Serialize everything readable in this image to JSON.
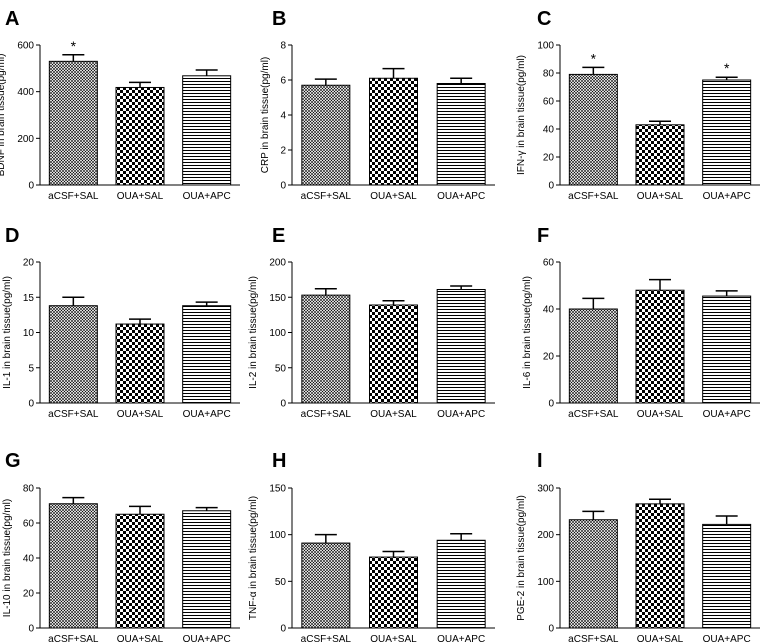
{
  "figure": {
    "categories": [
      "aCSF+SAL",
      "OUA+SAL",
      "OUA+APC"
    ],
    "patterns": [
      "hatch-fine",
      "checker",
      "hstripes"
    ],
    "colors": {
      "ink": "#000000",
      "background": "#ffffff"
    }
  },
  "chart_data": [
    {
      "type": "bar",
      "panel_label": "A",
      "ylabel": "BDNF in brain tissue(pg/ml)",
      "categories": [
        "aCSF+SAL",
        "OUA+SAL",
        "OUA+APC"
      ],
      "values": [
        530,
        418,
        468
      ],
      "errors": [
        28,
        22,
        25
      ],
      "significance": [
        "*",
        "",
        ""
      ],
      "ylim": [
        0,
        600
      ],
      "yticks": [
        0,
        200,
        400,
        600
      ],
      "yticks_labels": [
        "0",
        "200",
        "400",
        "600"
      ]
    },
    {
      "type": "bar",
      "panel_label": "B",
      "ylabel": "CRP in brain tissue(pg/ml)",
      "categories": [
        "aCSF+SAL",
        "OUA+SAL",
        "OUA+APC"
      ],
      "values": [
        5.7,
        6.1,
        5.8
      ],
      "errors": [
        0.35,
        0.55,
        0.3
      ],
      "significance": [
        "",
        "",
        ""
      ],
      "ylim": [
        0,
        8
      ],
      "yticks": [
        0,
        2,
        4,
        6,
        8
      ],
      "yticks_labels": [
        "0",
        "2",
        "4",
        "6",
        "8"
      ]
    },
    {
      "type": "bar",
      "panel_label": "C",
      "ylabel": "IFN-γ in brain tissue(pg/ml)",
      "categories": [
        "aCSF+SAL",
        "OUA+SAL",
        "OUA+APC"
      ],
      "values": [
        79,
        43,
        75
      ],
      "errors": [
        5,
        2.5,
        2
      ],
      "significance": [
        "*",
        "",
        "*"
      ],
      "ylim": [
        0,
        100
      ],
      "yticks": [
        0,
        20,
        40,
        60,
        80,
        100
      ],
      "yticks_labels": [
        "0",
        "20",
        "40",
        "60",
        "80",
        "100"
      ]
    },
    {
      "type": "bar",
      "panel_label": "D",
      "ylabel": "IL-1 in brain tissue(pg/ml)",
      "categories": [
        "aCSF+SAL",
        "OUA+SAL",
        "OUA+APC"
      ],
      "values": [
        13.8,
        11.2,
        13.8
      ],
      "errors": [
        1.2,
        0.7,
        0.5
      ],
      "significance": [
        "",
        "",
        ""
      ],
      "ylim": [
        0,
        20
      ],
      "yticks": [
        0,
        5,
        10,
        15,
        20
      ],
      "yticks_labels": [
        "0",
        "5",
        "10",
        "15",
        "20"
      ]
    },
    {
      "type": "bar",
      "panel_label": "E",
      "ylabel": "IL-2 in brain tissue(pg/ml)",
      "categories": [
        "aCSF+SAL",
        "OUA+SAL",
        "OUA+APC"
      ],
      "values": [
        153,
        139,
        161
      ],
      "errors": [
        9,
        6,
        5
      ],
      "significance": [
        "",
        "",
        ""
      ],
      "ylim": [
        0,
        200
      ],
      "yticks": [
        0,
        50,
        100,
        150,
        200
      ],
      "yticks_labels": [
        "0",
        "50",
        "100",
        "150",
        "200"
      ]
    },
    {
      "type": "bar",
      "panel_label": "F",
      "ylabel": "IL-6 in brain tissue(pg/ml)",
      "categories": [
        "aCSF+SAL",
        "OUA+SAL",
        "OUA+APC"
      ],
      "values": [
        40,
        48,
        45.5
      ],
      "errors": [
        4.5,
        4.5,
        2.2
      ],
      "significance": [
        "",
        "",
        ""
      ],
      "ylim": [
        0,
        60
      ],
      "yticks": [
        0,
        20,
        40,
        60
      ],
      "yticks_labels": [
        "0",
        "20",
        "40",
        "60"
      ]
    },
    {
      "type": "bar",
      "panel_label": "G",
      "ylabel": "IL-10 in brain tissue(pg/ml)",
      "categories": [
        "aCSF+SAL",
        "OUA+SAL",
        "OUA+APC"
      ],
      "values": [
        71,
        65,
        67
      ],
      "errors": [
        3.5,
        4.5,
        1.8
      ],
      "significance": [
        "",
        "",
        ""
      ],
      "ylim": [
        0,
        80
      ],
      "yticks": [
        0,
        20,
        40,
        60,
        80
      ],
      "yticks_labels": [
        "0",
        "20",
        "40",
        "60",
        "80"
      ]
    },
    {
      "type": "bar",
      "panel_label": "H",
      "ylabel": "TNF-α in brain tissue(pg/ml)",
      "categories": [
        "aCSF+SAL",
        "OUA+SAL",
        "OUA+APC"
      ],
      "values": [
        91,
        76,
        94
      ],
      "errors": [
        9,
        6,
        7
      ],
      "significance": [
        "",
        "",
        ""
      ],
      "ylim": [
        0,
        150
      ],
      "yticks": [
        0,
        50,
        100,
        150
      ],
      "yticks_labels": [
        "0",
        "50",
        "100",
        "150"
      ]
    },
    {
      "type": "bar",
      "panel_label": "I",
      "ylabel": "PGE-2 in brain tissue(pg/ml)",
      "categories": [
        "aCSF+SAL",
        "OUA+SAL",
        "OUA+APC"
      ],
      "values": [
        232,
        266,
        222
      ],
      "errors": [
        18,
        10,
        18
      ],
      "significance": [
        "",
        "",
        ""
      ],
      "ylim": [
        0,
        300
      ],
      "yticks": [
        0,
        100,
        200,
        300
      ],
      "yticks_labels": [
        "0",
        "100",
        "200",
        "300"
      ]
    }
  ]
}
